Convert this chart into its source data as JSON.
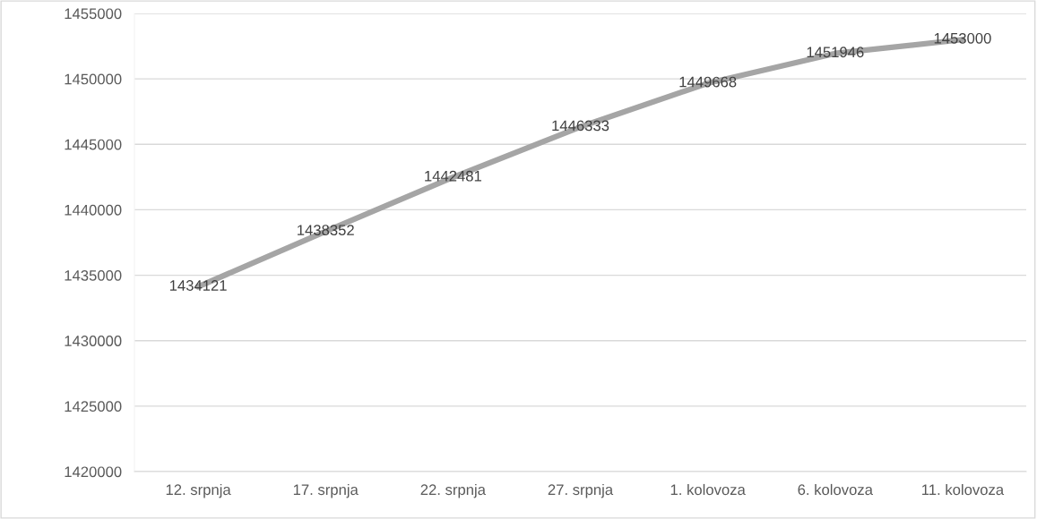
{
  "chart_data": {
    "type": "line",
    "categories": [
      "12. srpnja",
      "17. srpnja",
      "22. srpnja",
      "27. srpnja",
      "1. kolovoza",
      "6. kolovoza",
      "11. kolovoza"
    ],
    "series": [
      {
        "color": "#a5a5a5",
        "values": [
          1434121,
          1438352,
          1442481,
          1446333,
          1449668,
          1451946,
          1453000
        ]
      }
    ],
    "ylim": [
      1420000,
      1455000
    ],
    "yticks": [
      1420000,
      1425000,
      1430000,
      1435000,
      1440000,
      1445000,
      1450000,
      1455000
    ],
    "grid": "y",
    "legend": false,
    "marker": "none",
    "line_style": "solid",
    "data_labels": true
  }
}
